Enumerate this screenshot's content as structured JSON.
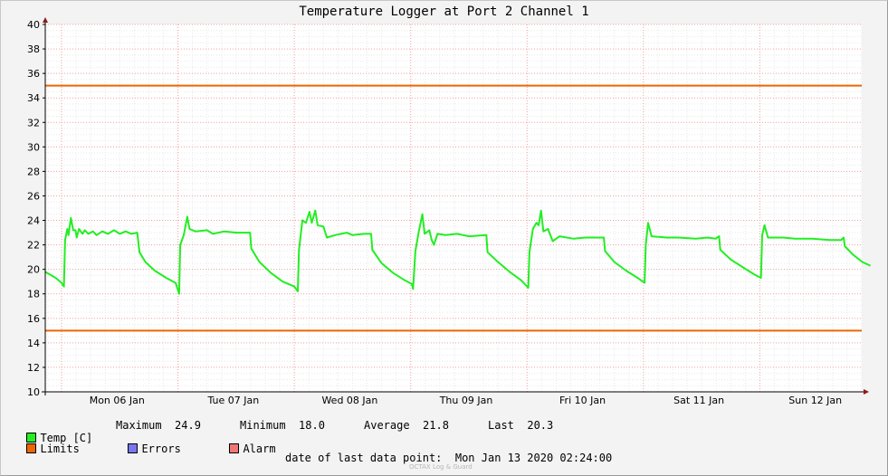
{
  "title": "Temperature Logger at Port 2 Channel 1",
  "chart_data": {
    "type": "line",
    "title": "Temperature Logger at Port 2 Channel 1",
    "xlabel": "",
    "ylabel": "",
    "ylim": [
      10,
      40
    ],
    "yticks": [
      10,
      12,
      14,
      16,
      18,
      20,
      22,
      24,
      26,
      28,
      30,
      32,
      34,
      36,
      38,
      40
    ],
    "xlim": [
      0,
      7
    ],
    "day_labels": [
      "Mon 06 Jan",
      "Tue 07 Jan",
      "Wed 08 Jan",
      "Thu 09 Jan",
      "Fri 10 Jan",
      "Sat 11 Jan",
      "Sun 12 Jan"
    ],
    "grid": true,
    "legend_position": "bottom",
    "limits": {
      "upper": 35,
      "lower": 15
    },
    "series": [
      {
        "name": "Temp [C]",
        "color": "#22ee22",
        "points": [
          [
            -0.14,
            19.8
          ],
          [
            -0.05,
            19.3
          ],
          [
            0.0,
            18.9
          ],
          [
            0.02,
            18.6
          ],
          [
            0.03,
            22.4
          ],
          [
            0.05,
            23.3
          ],
          [
            0.06,
            22.8
          ],
          [
            0.08,
            24.2
          ],
          [
            0.1,
            23.2
          ],
          [
            0.12,
            23.2
          ],
          [
            0.13,
            22.6
          ],
          [
            0.15,
            23.3
          ],
          [
            0.18,
            22.9
          ],
          [
            0.2,
            23.2
          ],
          [
            0.23,
            22.9
          ],
          [
            0.27,
            23.1
          ],
          [
            0.3,
            22.8
          ],
          [
            0.35,
            23.1
          ],
          [
            0.4,
            22.9
          ],
          [
            0.45,
            23.2
          ],
          [
            0.5,
            22.9
          ],
          [
            0.55,
            23.1
          ],
          [
            0.6,
            22.9
          ],
          [
            0.65,
            23.0
          ],
          [
            0.67,
            21.4
          ],
          [
            0.72,
            20.6
          ],
          [
            0.8,
            19.9
          ],
          [
            0.9,
            19.3
          ],
          [
            0.98,
            18.9
          ],
          [
            1.01,
            18.0
          ],
          [
            1.02,
            22.0
          ],
          [
            1.05,
            22.8
          ],
          [
            1.08,
            24.3
          ],
          [
            1.1,
            23.3
          ],
          [
            1.15,
            23.1
          ],
          [
            1.25,
            23.2
          ],
          [
            1.3,
            22.9
          ],
          [
            1.4,
            23.1
          ],
          [
            1.5,
            23.0
          ],
          [
            1.62,
            23.0
          ],
          [
            1.63,
            21.7
          ],
          [
            1.7,
            20.6
          ],
          [
            1.8,
            19.7
          ],
          [
            1.9,
            19.0
          ],
          [
            2.0,
            18.6
          ],
          [
            2.03,
            18.2
          ],
          [
            2.04,
            21.6
          ],
          [
            2.07,
            24.0
          ],
          [
            2.1,
            23.8
          ],
          [
            2.13,
            24.7
          ],
          [
            2.15,
            23.8
          ],
          [
            2.18,
            24.8
          ],
          [
            2.2,
            23.6
          ],
          [
            2.25,
            23.5
          ],
          [
            2.28,
            22.6
          ],
          [
            2.35,
            22.8
          ],
          [
            2.45,
            23.0
          ],
          [
            2.5,
            22.8
          ],
          [
            2.6,
            22.9
          ],
          [
            2.66,
            22.9
          ],
          [
            2.67,
            21.6
          ],
          [
            2.75,
            20.5
          ],
          [
            2.85,
            19.7
          ],
          [
            2.95,
            19.1
          ],
          [
            3.01,
            18.8
          ],
          [
            3.02,
            18.4
          ],
          [
            3.04,
            21.5
          ],
          [
            3.07,
            23.1
          ],
          [
            3.1,
            24.5
          ],
          [
            3.12,
            22.9
          ],
          [
            3.16,
            23.2
          ],
          [
            3.18,
            22.4
          ],
          [
            3.2,
            22.0
          ],
          [
            3.23,
            22.9
          ],
          [
            3.3,
            22.8
          ],
          [
            3.4,
            22.9
          ],
          [
            3.5,
            22.7
          ],
          [
            3.65,
            22.8
          ],
          [
            3.66,
            21.4
          ],
          [
            3.75,
            20.6
          ],
          [
            3.85,
            19.8
          ],
          [
            3.95,
            19.1
          ],
          [
            4.01,
            18.5
          ],
          [
            4.02,
            21.4
          ],
          [
            4.05,
            23.3
          ],
          [
            4.08,
            23.8
          ],
          [
            4.1,
            23.6
          ],
          [
            4.12,
            24.8
          ],
          [
            4.14,
            23.1
          ],
          [
            4.18,
            23.3
          ],
          [
            4.22,
            22.3
          ],
          [
            4.28,
            22.7
          ],
          [
            4.4,
            22.5
          ],
          [
            4.5,
            22.6
          ],
          [
            4.66,
            22.6
          ],
          [
            4.67,
            21.5
          ],
          [
            4.75,
            20.6
          ],
          [
            4.85,
            19.9
          ],
          [
            4.95,
            19.3
          ],
          [
            5.01,
            18.9
          ],
          [
            5.02,
            22.0
          ],
          [
            5.04,
            23.8
          ],
          [
            5.07,
            22.7
          ],
          [
            5.2,
            22.6
          ],
          [
            5.3,
            22.6
          ],
          [
            5.45,
            22.5
          ],
          [
            5.55,
            22.6
          ],
          [
            5.62,
            22.5
          ],
          [
            5.65,
            22.7
          ],
          [
            5.66,
            21.6
          ],
          [
            5.75,
            20.8
          ],
          [
            5.85,
            20.2
          ],
          [
            5.95,
            19.6
          ],
          [
            6.01,
            19.3
          ],
          [
            6.02,
            22.8
          ],
          [
            6.04,
            23.6
          ],
          [
            6.07,
            22.6
          ],
          [
            6.2,
            22.6
          ],
          [
            6.3,
            22.5
          ],
          [
            6.45,
            22.5
          ],
          [
            6.6,
            22.4
          ],
          [
            6.7,
            22.4
          ],
          [
            6.72,
            22.6
          ],
          [
            6.73,
            21.9
          ],
          [
            6.8,
            21.2
          ],
          [
            6.88,
            20.6
          ],
          [
            6.95,
            20.3
          ]
        ]
      },
      {
        "name": "Limits",
        "color": "#ee6600"
      },
      {
        "name": "Errors",
        "color": "#7777ee"
      },
      {
        "name": "Alarm",
        "color": "#ee7777"
      }
    ]
  },
  "legend": {
    "temp_label": "Temp [C]",
    "limits_label": "Limits",
    "errors_label": "Errors",
    "alarm_label": "Alarm",
    "temp_color": "#22ee22",
    "limits_color": "#ee6600",
    "errors_color": "#7777ee",
    "alarm_color": "#ee7777"
  },
  "stats": {
    "maximum_label": "Maximum",
    "maximum_value": "24.9",
    "minimum_label": "Minimum",
    "minimum_value": "18.0",
    "average_label": "Average",
    "average_value": "21.8",
    "last_label": "Last",
    "last_value": "20.3"
  },
  "footer": {
    "last_data_point": "date of last data point:  Mon Jan 13 2020 02:24:00",
    "credit": "OCTAX Log & Guard"
  }
}
